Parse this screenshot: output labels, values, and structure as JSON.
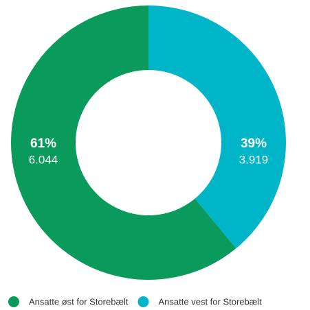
{
  "chart_data": {
    "type": "donut",
    "categories": [
      "Ansatte øst for Storebælt",
      "Ansatte vest for Storebælt"
    ],
    "values": [
      61,
      39
    ],
    "value_labels": [
      "61%",
      "39%"
    ],
    "counts": [
      6044,
      3919
    ],
    "count_labels": [
      "6.044",
      "3.919"
    ],
    "colors": [
      "#0a9a5c",
      "#00b5c8"
    ],
    "legend": "bottom"
  }
}
